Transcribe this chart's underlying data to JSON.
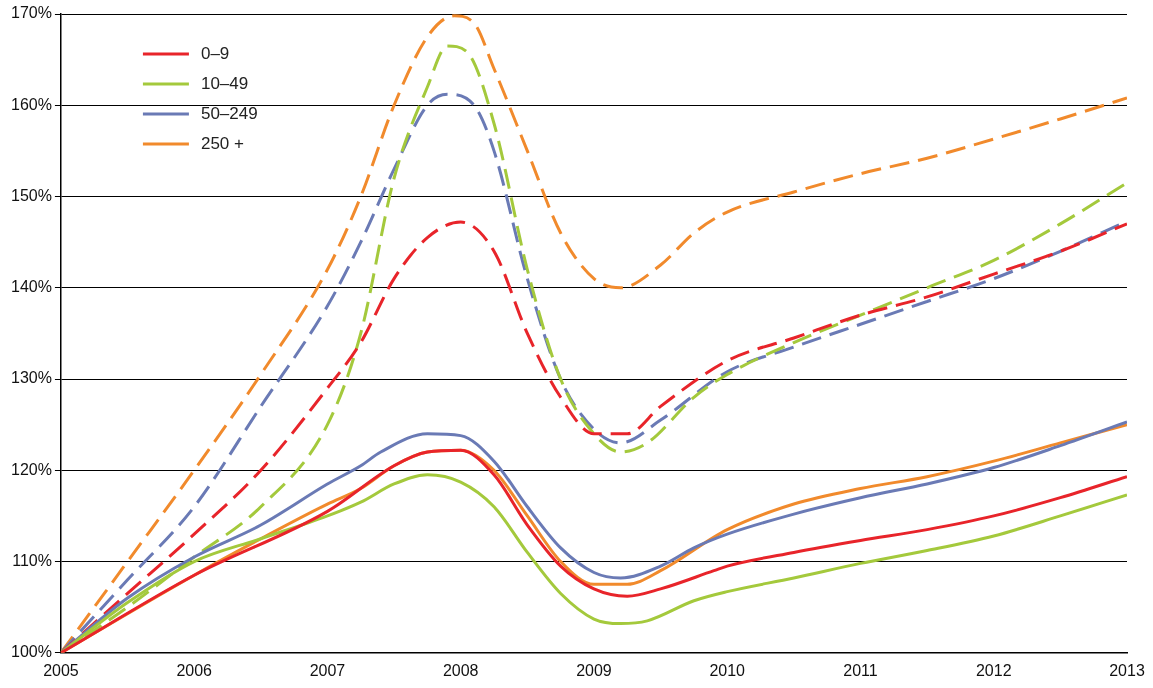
{
  "chart_data": {
    "type": "line",
    "xlim": [
      2005,
      2013
    ],
    "xticks": [
      2005,
      2006,
      2007,
      2008,
      2009,
      2010,
      2011,
      2012,
      2013
    ],
    "ylim": [
      100,
      170
    ],
    "yticks": [
      {
        "value": 100,
        "label": "100%"
      },
      {
        "value": 110,
        "label": "110%"
      },
      {
        "value": 120,
        "label": "120%"
      },
      {
        "value": 130,
        "label": "130%"
      },
      {
        "value": 140,
        "label": "140%"
      },
      {
        "value": 150,
        "label": "150%"
      },
      {
        "value": 160,
        "label": "160%"
      },
      {
        "value": 170,
        "label": "170%"
      }
    ],
    "grid": "y",
    "legend": "top left",
    "marker": "none",
    "series": [
      {
        "name": "0–9",
        "color": "#e8242a",
        "line_style": "solid",
        "x": [
          2005,
          2006,
          2007,
          2007.5,
          2007.75,
          2008,
          2008.25,
          2008.5,
          2008.75,
          2009,
          2009.25,
          2009.5,
          2009.9,
          2010,
          2010.5,
          2011,
          2011.5,
          2012,
          2012.5,
          2013
        ],
        "values": [
          100,
          108.5,
          115.5,
          120.5,
          122,
          122.2,
          119.5,
          114,
          109.5,
          107,
          106.2,
          107,
          109,
          109.5,
          111,
          112.3,
          113.5,
          115,
          117,
          119.3
        ]
      },
      {
        "name": "10–49",
        "color": "#a4c93c",
        "line_style": "solid",
        "x": [
          2005,
          2005.5,
          2006,
          2006.5,
          2007,
          2007.25,
          2007.5,
          2007.75,
          2008,
          2008.25,
          2008.5,
          2008.75,
          2009,
          2009.2,
          2009.4,
          2009.75,
          2010,
          2010.5,
          2011,
          2011.5,
          2012,
          2012.5,
          2013
        ],
        "values": [
          100,
          105.5,
          110,
          112.5,
          115,
          116.5,
          118.5,
          119.5,
          118.7,
          116,
          111,
          106.5,
          103.7,
          103.2,
          103.5,
          105.7,
          106.7,
          108.2,
          109.8,
          111.2,
          112.8,
          115,
          117.3
        ]
      },
      {
        "name": "50–249",
        "color": "#6a7ab5",
        "line_style": "solid",
        "x": [
          2005,
          2005.5,
          2006,
          2006.5,
          2007,
          2007.25,
          2007.4,
          2007.75,
          2008,
          2008.25,
          2008.5,
          2008.75,
          2009,
          2009.2,
          2009.5,
          2009.75,
          2010,
          2010.5,
          2011,
          2011.5,
          2012,
          2012.5,
          2013
        ],
        "values": [
          100,
          106,
          110.5,
          114,
          118.5,
          120.5,
          122,
          124,
          123.8,
          121,
          116,
          111.5,
          108.8,
          108.2,
          109.5,
          111.5,
          113,
          115.2,
          117,
          118.5,
          120.3,
          122.7,
          125.3
        ]
      },
      {
        "name": "250 +",
        "color": "#f18a2c",
        "line_style": "solid",
        "x": [
          2005,
          2006,
          2006.5,
          2007,
          2007.25,
          2007.5,
          2007.75,
          2008,
          2008.25,
          2008.5,
          2008.75,
          2009,
          2009.25,
          2009.5,
          2010,
          2010.5,
          2011,
          2011.5,
          2012,
          2012.5,
          2013
        ],
        "values": [
          100,
          108.5,
          112.5,
          116.3,
          118,
          120.5,
          122,
          122.2,
          120,
          115,
          110,
          107.5,
          107.5,
          109,
          113.5,
          116.3,
          118,
          119.3,
          121,
          123,
          125
        ]
      },
      {
        "color": "#e8242a",
        "line_style": "dashed",
        "x": [
          2005,
          2005.5,
          2006,
          2006.5,
          2007,
          2007.25,
          2007.5,
          2007.75,
          2008,
          2008.25,
          2008.5,
          2008.75,
          2009,
          2009.25,
          2009.5,
          2010,
          2010.5,
          2011,
          2011.5,
          2012,
          2012.5,
          2013
        ],
        "values": [
          100,
          106.5,
          113,
          120,
          129,
          134,
          141,
          145.5,
          147.2,
          144,
          135,
          128,
          124,
          124,
          127,
          132,
          134.5,
          137,
          139,
          141.5,
          144,
          147
        ]
      },
      {
        "color": "#a4c93c",
        "line_style": "dashed",
        "x": [
          2005,
          2005.5,
          2006,
          2006.5,
          2007,
          2007.25,
          2007.5,
          2007.75,
          2007.9,
          2008.05,
          2008.25,
          2008.5,
          2008.75,
          2009,
          2009.2,
          2009.4,
          2009.75,
          2010,
          2010.5,
          2011,
          2011.5,
          2012,
          2012.5,
          2013
        ],
        "values": [
          100,
          105,
          110.5,
          116,
          125,
          135,
          152,
          162,
          166.5,
          165.8,
          158,
          142,
          130,
          124,
          122,
          123,
          128,
          130.5,
          134,
          137,
          140,
          143,
          147,
          151.5
        ]
      },
      {
        "color": "#6a7ab5",
        "line_style": "dashed",
        "x": [
          2005,
          2005.5,
          2006,
          2006.5,
          2007,
          2007.25,
          2007.5,
          2007.75,
          2007.9,
          2008.1,
          2008.25,
          2008.5,
          2008.75,
          2009,
          2009.2,
          2009.5,
          2010,
          2010.5,
          2011,
          2011.5,
          2012,
          2012.5,
          2013
        ],
        "values": [
          100,
          108,
          116,
          127,
          138,
          145,
          153,
          160,
          161.2,
          160,
          155,
          141,
          130,
          124.5,
          123,
          125.5,
          130.8,
          133.5,
          136,
          138.5,
          141,
          144,
          147.3
        ]
      },
      {
        "color": "#f18a2c",
        "line_style": "dashed",
        "x": [
          2005,
          2005.5,
          2006,
          2006.5,
          2007,
          2007.25,
          2007.5,
          2007.75,
          2007.95,
          2008.1,
          2008.25,
          2008.5,
          2008.75,
          2009,
          2009.2,
          2009.5,
          2009.75,
          2010,
          2010.5,
          2011,
          2011.5,
          2012,
          2012.5,
          2013
        ],
        "values": [
          100,
          110,
          120,
          130.5,
          142,
          150,
          160,
          167.5,
          169.8,
          169,
          164,
          155,
          146,
          141,
          140,
          142.5,
          146,
          148.3,
          150.5,
          152.5,
          154.2,
          156.3,
          158.5,
          160.8
        ]
      }
    ]
  }
}
